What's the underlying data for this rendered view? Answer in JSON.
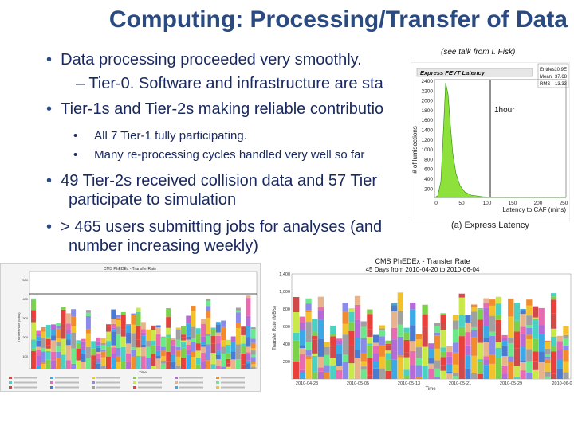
{
  "slide": {
    "title": "Computing: Processing/Transfer of Data",
    "note": "(see talk from I. Fisk)",
    "bullets": [
      "Data processing proceeded very smoothly.",
      "– Tier-0. Software and infrastructure are sta",
      "Tier-1s and Tier-2s making reliable contributio",
      "All 7 Tier-1 fully participating.",
      "Many re-processing cycles handled very well so far",
      "49 Tier-2s received collision data and 57 Tier",
      "participate to simulation",
      "> 465 users submitting jobs for analyses (and",
      "number increasing weekly)"
    ],
    "bullet_glyph": "•"
  },
  "latency_plot": {
    "title": "Express FEVT Latency",
    "ylabel": "# of lumisections",
    "xlabel": "Latency to CAF (mins)",
    "annotation": "1hour",
    "caption": "(a)  Express Latency",
    "stats": [
      {
        "label": "Entries",
        "value": "10.9E"
      },
      {
        "label": "Mean",
        "value": "37.68"
      },
      {
        "label": "RMS",
        "value": "13.33"
      }
    ],
    "yticks": [
      "2400",
      "2200",
      "2000",
      "1800",
      "1600",
      "1400",
      "1200",
      "1000",
      "800",
      "600",
      "400",
      "200"
    ],
    "xticks": [
      "0",
      "50",
      "100",
      "150",
      "200",
      "250"
    ],
    "colors": {
      "fill": "#8ee03a",
      "stroke": "#2a8a10",
      "marker": "#222222"
    }
  },
  "transfer_plot_1": {
    "title": "CMS PhEDEx - Transfer Rate",
    "subtitle": "45 Days from 2010-04-12 to 2010-05-27",
    "ylabel": "Transfer Rate (MB/s)",
    "xlabel": "Time",
    "yticks": [
      "500",
      "400",
      "300",
      "200",
      "100"
    ]
  },
  "transfer_plot_2": {
    "title": "CMS PhEDEx - Transfer Rate",
    "subtitle": "45 Days from 2010-04-20 to 2010-06-04",
    "ylabel": "Transfer Rate (MB/s)",
    "xlabel": "Time",
    "yticks": [
      "1,400",
      "1,000",
      "800",
      "600",
      "400",
      "200"
    ],
    "xticks": [
      "2010-04-23",
      "2010-05-05",
      "2010-05-13",
      "2010-05-21",
      "2010-05-29",
      "2010-06-0"
    ]
  },
  "palette": [
    "#e8413c",
    "#3ca8e8",
    "#f2c12e",
    "#7bd14a",
    "#b56ad6",
    "#f28a2e",
    "#4ad1c1",
    "#e86ab0",
    "#8a8ae8",
    "#c9e84a",
    "#e8b38a",
    "#6ae88a",
    "#d14a4a",
    "#4a7bd1",
    "#a0a0a0"
  ]
}
